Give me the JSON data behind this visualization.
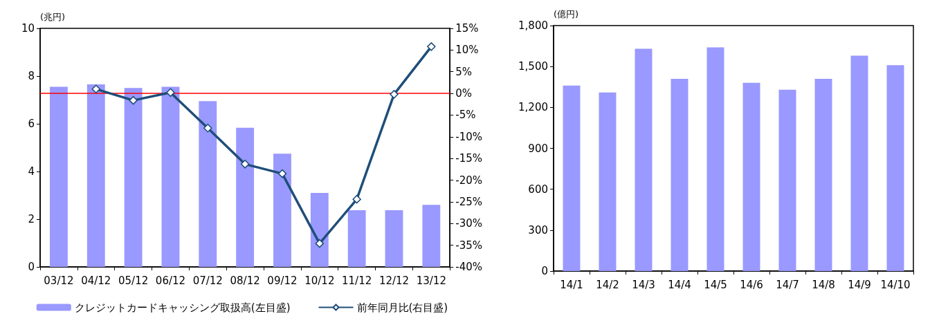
{
  "chart_data": [
    {
      "type": "bar",
      "ylabel": "(兆円)",
      "categories": [
        "03/12",
        "04/12",
        "05/12",
        "06/12",
        "07/12",
        "08/12",
        "09/12",
        "10/12",
        "11/12",
        "12/12",
        "13/12"
      ],
      "series": [
        {
          "name": "クレジットカードキャッシング取扱高(左目盛)",
          "color": "#9999ff",
          "values": [
            7.55,
            7.65,
            7.5,
            7.55,
            6.95,
            5.83,
            4.75,
            3.1,
            2.38,
            2.38,
            2.6
          ]
        },
        {
          "name": "前年同月比(右目盛)",
          "type": "line",
          "axis": "y2",
          "color": "#1f4e79",
          "values": [
            null,
            1.0,
            -1.6,
            0.2,
            -8,
            -16.3,
            -18.5,
            -34.6,
            -24.4,
            -0.2,
            10.8
          ]
        }
      ],
      "ylim": [
        0,
        10
      ],
      "yticks": [
        0,
        2,
        4,
        6,
        8,
        10
      ],
      "y2lim": [
        -40,
        15
      ],
      "y2ticks": [
        {
          "value": -40,
          "label": "-40%"
        },
        {
          "value": -35,
          "label": "-35%"
        },
        {
          "value": -30,
          "label": "-30%"
        },
        {
          "value": -25,
          "label": "-25%"
        },
        {
          "value": -20,
          "label": "-20%"
        },
        {
          "value": -15,
          "label": "-15%"
        },
        {
          "value": -10,
          "label": "-10%"
        },
        {
          "value": -5,
          "label": "-5%"
        },
        {
          "value": 0,
          "label": "0%"
        },
        {
          "value": 5,
          "label": "5%"
        },
        {
          "value": 10,
          "label": "10%"
        },
        {
          "value": 15,
          "label": "15%"
        }
      ],
      "ref_lines": [
        {
          "axis": "y2",
          "value": 0,
          "color": "#ff0000"
        }
      ],
      "marker": "diamond",
      "grid": false,
      "legend": "bottom"
    },
    {
      "type": "bar",
      "ylabel": "(億円)",
      "categories": [
        "14/1",
        "14/2",
        "14/3",
        "14/4",
        "14/5",
        "14/6",
        "14/7",
        "14/8",
        "14/9",
        "14/10"
      ],
      "series": [
        {
          "color": "#9999ff",
          "values": [
            1360,
            1310,
            1630,
            1410,
            1640,
            1380,
            1330,
            1410,
            1580,
            1510
          ]
        }
      ],
      "ylim": [
        0,
        1800
      ],
      "yticks": [
        0,
        300,
        600,
        900,
        {
          "value": 1200,
          "label": "1,200"
        },
        {
          "value": 1500,
          "label": "1,500"
        },
        {
          "value": 1800,
          "label": "1,800"
        }
      ],
      "grid": false,
      "legend": false
    }
  ]
}
